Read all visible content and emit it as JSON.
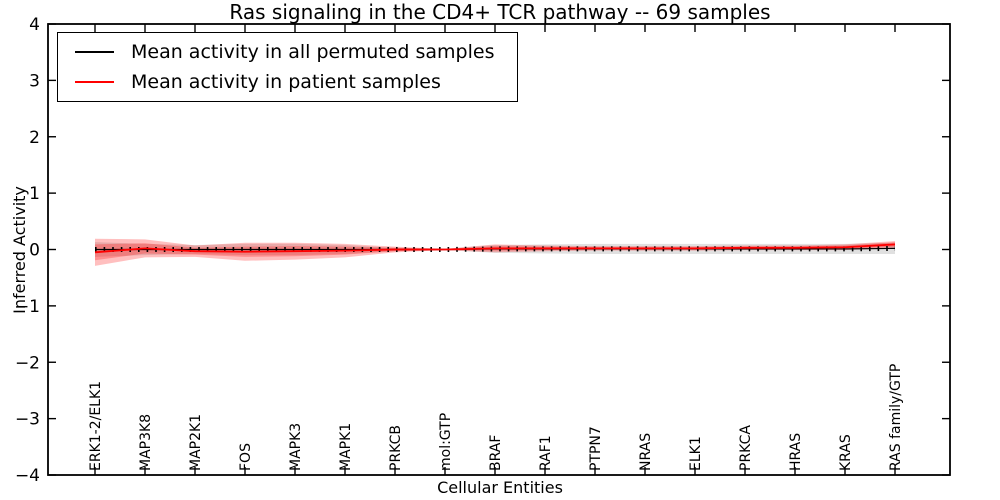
{
  "chart_data": {
    "type": "line",
    "title": "Ras signaling in the CD4+ TCR pathway -- 69 samples",
    "xlabel": "Cellular Entities",
    "ylabel": "Inferred Activity",
    "samples": 69,
    "ylim": [
      -4,
      4
    ],
    "ytick_values": [
      -4,
      -3,
      -2,
      -1,
      0,
      1,
      2,
      3,
      4
    ],
    "ytick_labels": [
      "−4",
      "−3",
      "−2",
      "−1",
      "0",
      "1",
      "2",
      "3",
      "4"
    ],
    "grid": false,
    "legend_position": "upper left",
    "frame_color": "#000000",
    "categories": [
      "ERK1-2/ELK1",
      "MAP3K8",
      "MAP2K1",
      "FOS",
      "MAPK3",
      "MAPK1",
      "PRKCB",
      "mol:GTP",
      "BRAF",
      "RAF1",
      "PTPN7",
      "NRAS",
      "ELK1",
      "PRKCA",
      "HRAS",
      "KRAS",
      "RAS family/GTP"
    ],
    "series": [
      {
        "name": "Mean activity in all permuted samples",
        "color": "#000000",
        "line_style": "solid-with-tick-markers",
        "values": [
          0.0,
          0.0,
          0.0,
          0.0,
          0.0,
          0.0,
          0.0,
          0.0,
          0.01,
          0.01,
          0.01,
          0.01,
          0.01,
          0.01,
          0.01,
          0.01,
          0.02
        ],
        "band_halfwidth": [
          0.13,
          0.1,
          0.08,
          0.1,
          0.1,
          0.08,
          0.03,
          0.01,
          0.07,
          0.08,
          0.09,
          0.09,
          0.09,
          0.09,
          0.09,
          0.09,
          0.1
        ],
        "band_color": "#000000",
        "band_opacity": 0.12
      },
      {
        "name": "Mean activity in patient samples",
        "color": "#ff0000",
        "line_style": "solid",
        "values": [
          -0.05,
          0.02,
          -0.03,
          -0.04,
          -0.03,
          -0.02,
          0.0,
          0.0,
          0.02,
          0.02,
          0.02,
          0.02,
          0.02,
          0.03,
          0.03,
          0.04,
          0.09
        ],
        "band_halfwidth_outer": [
          0.24,
          0.16,
          0.1,
          0.16,
          0.15,
          0.12,
          0.05,
          0.01,
          0.07,
          0.05,
          0.04,
          0.04,
          0.04,
          0.04,
          0.04,
          0.05,
          0.06
        ],
        "band_halfwidth_inner": [
          0.14,
          0.09,
          0.06,
          0.09,
          0.09,
          0.07,
          0.03,
          0.01,
          0.04,
          0.03,
          0.02,
          0.02,
          0.02,
          0.02,
          0.02,
          0.03,
          0.04
        ],
        "band_color": "#ff0000",
        "band_opacity": 0.25
      }
    ]
  }
}
